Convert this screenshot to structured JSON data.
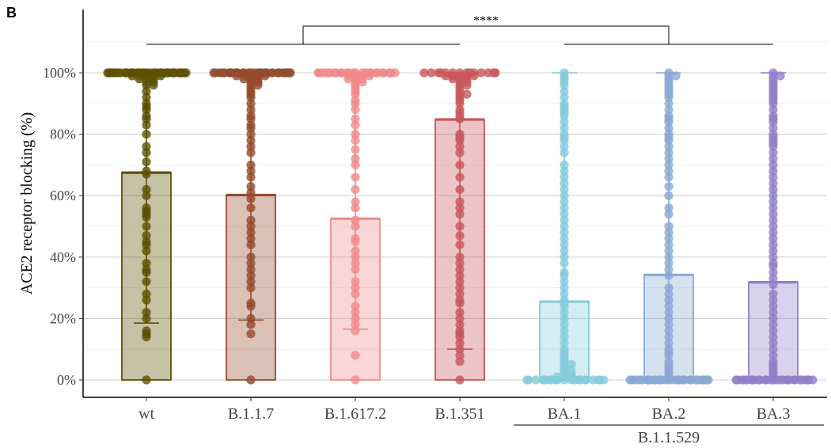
{
  "panel_label": "B",
  "colors": {
    "wt": "#5c5000",
    "B.1.1.7": "#944a2c",
    "B.1.617.2": "#f08a8a",
    "B.1.351": "#c8565a",
    "BA.1": "#84cadc",
    "BA.2": "#8aa8d4",
    "BA.3": "#9080c8"
  },
  "chart_data": {
    "type": "bar",
    "title": "",
    "xlabel": "",
    "ylabel": "ACE2 receptor blocking (%)",
    "ylim": [
      0,
      100
    ],
    "yticks": [
      "0%",
      "20%",
      "40%",
      "60%",
      "80%",
      "100%"
    ],
    "categories": [
      "wt",
      "B.1.1.7",
      "B.1.617.2",
      "B.1.351",
      "BA.1",
      "BA.2",
      "BA.3"
    ],
    "group_label": "B.1.1.529",
    "group_members": [
      "BA.1",
      "BA.2",
      "BA.3"
    ],
    "significance": "****",
    "series": [
      {
        "values": [
          67.5,
          60.2,
          52.5,
          84.8,
          25.5,
          34.2,
          31.8
        ],
        "error_low": [
          18.5,
          19.5,
          16.5,
          10.0,
          0,
          0,
          0
        ],
        "error_high": [
          100,
          100,
          100,
          100,
          100,
          100,
          100
        ]
      }
    ],
    "points": {
      "wt": [
        100,
        100,
        100,
        100,
        100,
        100,
        100,
        100,
        100,
        100,
        100,
        100,
        100,
        100,
        100,
        100,
        100,
        100,
        100,
        100,
        100,
        100,
        100,
        100,
        100,
        100,
        100,
        100,
        100,
        100,
        100,
        100,
        100,
        100,
        100,
        100,
        100,
        99,
        99,
        99,
        99,
        99,
        98,
        98,
        98,
        97,
        97,
        96,
        96,
        94,
        92,
        90,
        89,
        88,
        86,
        85,
        83,
        80,
        76,
        74,
        71,
        68,
        67,
        62,
        60,
        56,
        55,
        54,
        53,
        50,
        47,
        45,
        44,
        42,
        38,
        36,
        35,
        32,
        28,
        26,
        22,
        20,
        16,
        15,
        14,
        0
      ],
      "B.1.1.7": [
        100,
        100,
        100,
        100,
        100,
        100,
        100,
        100,
        100,
        100,
        100,
        100,
        100,
        100,
        100,
        100,
        100,
        100,
        100,
        100,
        100,
        100,
        100,
        100,
        100,
        100,
        100,
        100,
        100,
        100,
        100,
        99,
        99,
        99,
        99,
        99,
        98,
        98,
        98,
        97,
        97,
        96,
        96,
        95,
        94,
        93,
        92,
        90,
        88,
        86,
        85,
        83,
        82,
        80,
        78,
        76,
        74,
        70,
        68,
        66,
        63,
        61,
        59,
        56,
        52,
        50,
        48,
        46,
        44,
        40,
        38,
        36,
        34,
        32,
        30,
        25,
        24,
        20,
        18,
        15,
        0
      ],
      "B.1.617.2": [
        100,
        100,
        100,
        100,
        100,
        100,
        100,
        100,
        100,
        100,
        100,
        100,
        100,
        100,
        100,
        100,
        100,
        100,
        100,
        100,
        100,
        100,
        100,
        100,
        99,
        99,
        99,
        99,
        98,
        98,
        98,
        97,
        97,
        96,
        95,
        94,
        93,
        91,
        90,
        88,
        85,
        83,
        80,
        78,
        75,
        72,
        70,
        66,
        62,
        58,
        56,
        52,
        50,
        46,
        45,
        42,
        40,
        38,
        36,
        32,
        30,
        28,
        24,
        22,
        20,
        18,
        16,
        8,
        0
      ],
      "B.1.351": [
        100,
        100,
        100,
        100,
        100,
        100,
        100,
        100,
        100,
        100,
        100,
        100,
        100,
        100,
        99,
        99,
        99,
        99,
        99,
        98,
        98,
        98,
        97,
        97,
        96,
        96,
        95,
        94,
        93,
        93,
        92,
        91,
        90,
        88,
        87,
        86,
        85,
        80,
        79,
        78,
        76,
        74,
        70,
        66,
        62,
        58,
        56,
        54,
        50,
        47,
        44,
        40,
        38,
        36,
        34,
        32,
        30,
        28,
        26,
        25,
        22,
        20,
        18,
        16,
        15,
        14,
        12,
        10,
        8,
        6,
        0
      ],
      "BA.1": [
        100,
        99,
        98,
        97,
        96,
        94,
        92,
        90,
        89,
        88,
        87,
        86,
        84,
        82,
        80,
        79,
        78,
        76,
        74,
        70,
        68,
        66,
        64,
        62,
        60,
        58,
        56,
        54,
        52,
        50,
        48,
        46,
        44,
        42,
        40,
        38,
        35,
        34,
        32,
        30,
        28,
        26,
        25,
        24,
        22,
        20,
        18,
        16,
        14,
        12,
        10,
        9,
        8,
        7,
        6,
        5,
        5,
        4,
        3,
        3,
        2,
        2,
        1,
        1,
        1,
        0,
        0,
        0,
        0,
        0,
        0,
        0,
        0,
        0,
        0,
        0,
        0,
        0,
        0,
        0,
        0,
        0,
        0,
        0,
        0
      ],
      "BA.2": [
        100,
        99,
        99,
        98,
        97,
        96,
        95,
        94,
        93,
        92,
        90,
        88,
        86,
        85,
        84,
        82,
        80,
        79,
        78,
        76,
        74,
        72,
        70,
        68,
        66,
        63,
        60,
        56,
        54,
        50,
        48,
        46,
        44,
        42,
        40,
        38,
        36,
        34,
        30,
        28,
        26,
        24,
        22,
        20,
        18,
        16,
        14,
        12,
        10,
        9,
        8,
        6,
        5,
        4,
        3,
        2,
        1,
        0,
        0,
        0,
        0,
        0,
        0,
        0,
        0,
        0,
        0,
        0,
        0,
        0,
        0,
        0,
        0,
        0,
        0,
        0,
        0,
        0,
        0,
        0,
        0,
        0,
        0,
        0,
        0,
        0,
        0,
        0,
        0,
        0
      ],
      "BA.3": [
        100,
        99,
        99,
        98,
        97,
        96,
        95,
        94,
        93,
        92,
        91,
        90,
        88,
        86,
        85,
        84,
        82,
        80,
        79,
        78,
        77,
        76,
        74,
        72,
        70,
        68,
        66,
        64,
        62,
        60,
        58,
        56,
        54,
        52,
        50,
        48,
        46,
        44,
        42,
        40,
        38,
        37,
        35,
        33,
        31,
        28,
        26,
        24,
        22,
        20,
        18,
        16,
        14,
        12,
        10,
        8,
        6,
        5,
        4,
        3,
        2,
        1,
        0,
        0,
        0,
        0,
        0,
        0,
        0,
        0,
        0,
        0,
        0,
        0,
        0,
        0,
        0,
        0,
        0,
        0,
        0,
        0,
        0,
        0,
        0,
        0,
        0,
        0,
        0
      ]
    }
  }
}
